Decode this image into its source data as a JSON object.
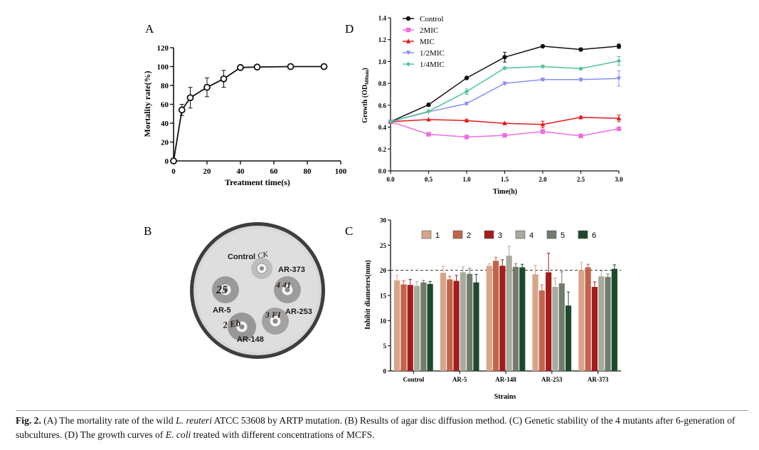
{
  "panel_labels": {
    "a": "A",
    "b": "B",
    "c": "C",
    "d": "D"
  },
  "colors": {
    "axis": "#111111",
    "panel_a_line": "#111111",
    "d_control": "#111111",
    "d_2mic": "#ee6ee0",
    "d_mic": "#e31a1c",
    "d_half_mic": "#8b8ff2",
    "d_quarter_mic": "#52c39b",
    "c1": "#d8a48a",
    "c2": "#c0644a",
    "c3": "#a41c1c",
    "c4": "#a7ab9e",
    "c5": "#727b6c",
    "c6": "#1d4a2c",
    "plate_rim": "#4a4a4a",
    "plate_agar": "#dcdcdc",
    "photo_bg": "#ffffff"
  },
  "chart_data": [
    {
      "id": "A",
      "type": "line",
      "title": "",
      "xlabel": "Treatment time(s)",
      "ylabel": "Mortality rate(%)",
      "xlim": [
        0,
        100
      ],
      "ylim": [
        0,
        120
      ],
      "xticks": [
        "0",
        "20",
        "40",
        "60",
        "80",
        "100"
      ],
      "yticks": [
        "0",
        "20",
        "40",
        "60",
        "80",
        "100",
        "120"
      ],
      "x": [
        0,
        5,
        10,
        20,
        30,
        40,
        50,
        70,
        90
      ],
      "y": [
        0,
        54,
        67,
        78,
        87,
        99,
        99.5,
        100,
        100
      ],
      "err": [
        0,
        6,
        11,
        10,
        9,
        1,
        1,
        1,
        1
      ],
      "marker": "open-circle"
    },
    {
      "id": "B",
      "type": "photo",
      "labels": [
        "Control",
        "AR-373",
        "AR-5",
        "AR-253",
        "AR-148"
      ],
      "handwriting": [
        "CK",
        "4 41",
        "25",
        "3 FI",
        "2 Eb"
      ]
    },
    {
      "id": "C",
      "type": "bar",
      "title": "",
      "xlabel": "Strains",
      "ylabel": "Inhibit diameters(mm)",
      "ylim": [
        0,
        30
      ],
      "yticks": [
        "0",
        "5",
        "10",
        "15",
        "20",
        "25",
        "30"
      ],
      "reference_line": 20,
      "categories": [
        "Control",
        "AR-5",
        "AR-148",
        "AR-253",
        "AR-373"
      ],
      "series": [
        {
          "name": "1",
          "values": [
            18.0,
            19.5,
            20.9,
            19.2,
            20.0
          ],
          "err": [
            1.0,
            1.3,
            0.4,
            1.8,
            1.6
          ]
        },
        {
          "name": "2",
          "values": [
            17.2,
            18.2,
            21.9,
            16.0,
            20.6
          ],
          "err": [
            0.7,
            0.6,
            0.7,
            1.1,
            0.6
          ]
        },
        {
          "name": "3",
          "values": [
            17.1,
            17.9,
            20.9,
            19.6,
            16.7
          ],
          "err": [
            1.1,
            1.1,
            1.2,
            3.8,
            1.0
          ]
        },
        {
          "name": "4",
          "values": [
            16.9,
            19.6,
            22.9,
            16.7,
            18.8
          ],
          "err": [
            0.9,
            1.1,
            1.9,
            1.8,
            1.1
          ]
        },
        {
          "name": "5",
          "values": [
            17.6,
            19.3,
            20.7,
            17.4,
            18.7
          ],
          "err": [
            0.4,
            1.1,
            0.6,
            2.3,
            0.6
          ]
        },
        {
          "name": "6",
          "values": [
            17.3,
            17.6,
            20.6,
            13.0,
            20.3
          ],
          "err": [
            0.5,
            1.6,
            0.6,
            2.7,
            0.8
          ]
        }
      ]
    },
    {
      "id": "D",
      "type": "line",
      "title": "",
      "xlabel": "Time(h)",
      "ylabel_main": "Growth (OD",
      "ylabel_sub": "600nm",
      "ylabel_close": ")",
      "xlim": [
        0,
        3.0
      ],
      "ylim": [
        0,
        1.4
      ],
      "xticks": [
        "0.0",
        "0.5",
        "1.0",
        "1.5",
        "2.0",
        "2.5",
        "3.0"
      ],
      "yticks": [
        "0.0",
        "0.2",
        "0.4",
        "0.6",
        "0.8",
        "1.0",
        "1.2",
        "1.4"
      ],
      "x": [
        0,
        0.5,
        1.0,
        1.5,
        2.0,
        2.5,
        3.0
      ],
      "series": [
        {
          "name": "Control",
          "marker": "circle",
          "values": [
            0.45,
            0.605,
            0.85,
            1.04,
            1.14,
            1.11,
            1.14
          ],
          "err": [
            0,
            0,
            0.01,
            0.045,
            0.005,
            0.01,
            0.02
          ]
        },
        {
          "name": "2MIC",
          "marker": "square",
          "values": [
            0.45,
            0.335,
            0.31,
            0.325,
            0.36,
            0.32,
            0.385
          ],
          "err": [
            0,
            0,
            0.01,
            0.01,
            0.02,
            0.01,
            0.015
          ]
        },
        {
          "name": "MIC",
          "marker": "triangle-up",
          "values": [
            0.45,
            0.47,
            0.46,
            0.435,
            0.425,
            0.49,
            0.48
          ],
          "err": [
            0,
            0,
            0.01,
            0.005,
            0.03,
            0.01,
            0.03
          ]
        },
        {
          "name": "1/2MIC",
          "marker": "triangle-down",
          "values": [
            0.45,
            0.54,
            0.615,
            0.8,
            0.835,
            0.835,
            0.845
          ],
          "err": [
            0,
            0,
            0.01,
            0.01,
            0.01,
            0.01,
            0.07
          ]
        },
        {
          "name": "1/4MIC",
          "marker": "diamond",
          "values": [
            0.45,
            0.545,
            0.725,
            0.94,
            0.955,
            0.935,
            1.005
          ],
          "err": [
            0,
            0,
            0.025,
            0.01,
            0.01,
            0.01,
            0.04
          ]
        }
      ]
    }
  ],
  "caption": {
    "label": "Fig. 2.",
    "p1": " (A) The mortality rate of the wild ",
    "i1": "L. reuteri",
    "p2": " ATCC 53608 by ARTP mutation. (B) Results of agar disc diffusion method. (C) Genetic stability of the 4 mutants after 6-generation of subcultures. (D) The growth curves of ",
    "i2": "E. coli",
    "p3": " treated with different concentrations of MCFS."
  }
}
